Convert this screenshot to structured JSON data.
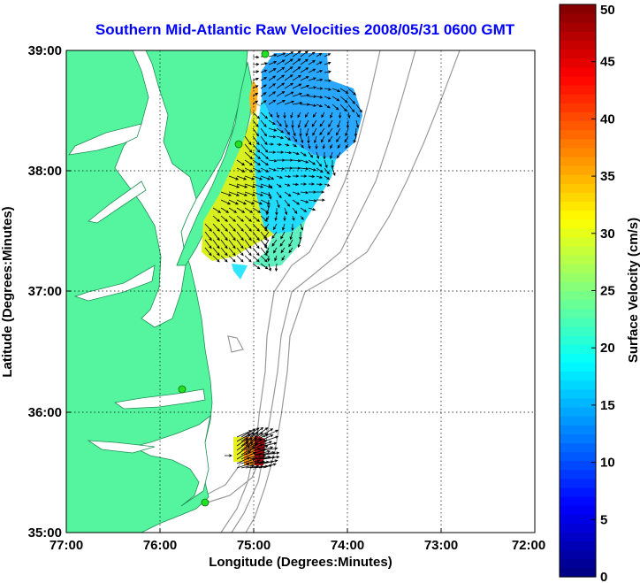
{
  "chart_data": {
    "type": "heatmap",
    "title": "Southern Mid-Atlantic Raw Velocities 2008/05/31 0600 GMT",
    "xlabel": "Longitude (Degrees:Minutes)",
    "ylabel": "Latitude (Degrees:Minutes)",
    "xlim": [
      -77,
      -72
    ],
    "ylim": [
      35,
      39
    ],
    "x_ticks": [
      {
        "value": -77,
        "label": "77:00"
      },
      {
        "value": -76,
        "label": "76:00"
      },
      {
        "value": -75,
        "label": "75:00"
      },
      {
        "value": -74,
        "label": "74:00"
      },
      {
        "value": -73,
        "label": "73:00"
      },
      {
        "value": -72,
        "label": "72:00"
      }
    ],
    "y_ticks": [
      {
        "value": 35,
        "label": "35:00"
      },
      {
        "value": 36,
        "label": "36:00"
      },
      {
        "value": 37,
        "label": "37:00"
      },
      {
        "value": 38,
        "label": "38:00"
      },
      {
        "value": 39,
        "label": "39:00"
      }
    ],
    "grid": true,
    "colorbar": {
      "label": "Surface Velocity (cm/s)",
      "min": 0,
      "max": 50,
      "ticks": [
        0,
        5,
        10,
        15,
        20,
        25,
        30,
        35,
        40,
        45,
        50
      ],
      "colormap": "jet"
    },
    "radar_sites": [
      {
        "lon": -74.88,
        "lat": 38.93
      },
      {
        "lon": -75.15,
        "lat": 38.2
      },
      {
        "lon": -75.24,
        "lat": 36.18
      },
      {
        "lon": -75.5,
        "lat": 35.25
      }
    ],
    "velocity_regions": [
      {
        "name": "north",
        "speed_range_cm_s": [
          3,
          35
        ]
      },
      {
        "name": "south",
        "speed_range_cm_s": [
          15,
          50
        ]
      }
    ]
  },
  "colors": {
    "land": "#55f5a0",
    "water": "#ffffff",
    "coast": "#1f8f55",
    "bathymetry": "#9a9a9a",
    "site": "#22e022",
    "title": "#0000ff"
  }
}
